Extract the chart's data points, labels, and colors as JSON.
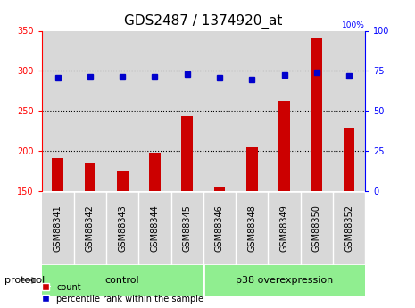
{
  "title": "GDS2487 / 1374920_at",
  "samples": [
    "GSM88341",
    "GSM88342",
    "GSM88343",
    "GSM88344",
    "GSM88345",
    "GSM88346",
    "GSM88348",
    "GSM88349",
    "GSM88350",
    "GSM88352"
  ],
  "counts": [
    191,
    184,
    175,
    198,
    244,
    155,
    204,
    262,
    341,
    229
  ],
  "percentiles": [
    70.5,
    71.5,
    71.5,
    71.5,
    73,
    70.5,
    69.5,
    72.5,
    74,
    72
  ],
  "ylim_left": [
    150,
    350
  ],
  "ylim_right": [
    0,
    100
  ],
  "yticks_left": [
    150,
    200,
    250,
    300,
    350
  ],
  "yticks_right": [
    0,
    25,
    50,
    75,
    100
  ],
  "bar_color": "#cc0000",
  "dot_color": "#0000cc",
  "control_group_count": 5,
  "overexp_group_count": 5,
  "control_label": "control",
  "overexp_label": "p38 overexpression",
  "protocol_label": "protocol",
  "legend_count": "count",
  "legend_percentile": "percentile rank within the sample",
  "bg_color": "#ffffff",
  "panel_color": "#d8d8d8",
  "group_color": "#90ee90",
  "title_fontsize": 11,
  "tick_fontsize": 7,
  "label_fontsize": 8
}
